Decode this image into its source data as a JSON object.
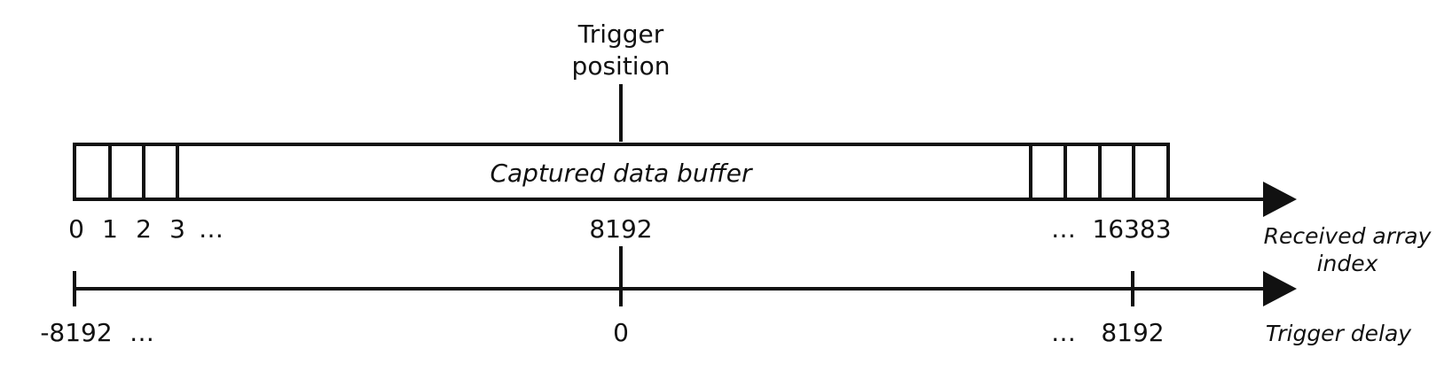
{
  "diagram": {
    "trigger_position": {
      "line1": "Trigger",
      "line2": "position"
    },
    "buffer": {
      "label": "Captured data buffer"
    },
    "received_index": {
      "labels": [
        "0",
        "1",
        "2",
        "3",
        "…",
        "8192",
        "…",
        "16383"
      ],
      "axis_label_line1": "Received array",
      "axis_label_line2": "index"
    },
    "trigger_delay": {
      "labels": [
        "-8192",
        "…",
        "0",
        "…",
        "8192"
      ],
      "axis_label": "Trigger delay"
    },
    "colors": {
      "ink": "#111111",
      "background": "#ffffff"
    }
  }
}
